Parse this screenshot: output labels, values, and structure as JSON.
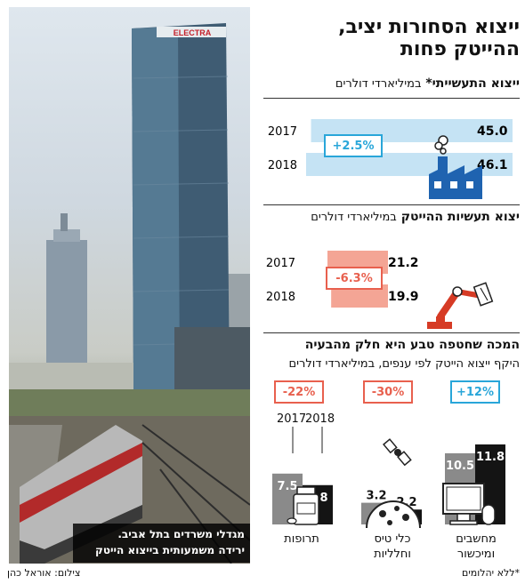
{
  "header": {
    "title_line1": "ייצוא הסחורות יציב,",
    "title_line2": "ההייטק פחות"
  },
  "photo": {
    "caption_line1": "מגדלי משרדים בתל אביב.",
    "caption_line2": "ירידה משמעותית בייצוא הייטק",
    "credit": "צילום: אוראל כהן"
  },
  "footnote": "*ללא יהלומים",
  "sections": {
    "industrial": {
      "title": "ייצוא התעשייתי*",
      "unit": "במיליארדי דולרים"
    },
    "hitech": {
      "title": "יצוא תעשיות ההייטק",
      "unit": "במיליארדי דולרים"
    },
    "branches": {
      "title": "המכה שחטפה טבע היא חלק מהבעיה",
      "subtitle": "היקף ייצוא הייטק לפי ענפים, במיליארדי דולרים"
    }
  },
  "chart_data": [
    {
      "type": "bar",
      "orientation": "horizontal",
      "title": "ייצוא התעשייתי*",
      "ylabel": "במיליארדי דולרים",
      "categories": [
        "2017",
        "2018"
      ],
      "values": [
        45.0,
        46.1
      ],
      "labels": [
        "45.0",
        "46.1"
      ],
      "change": "+2.5%",
      "color": "#c5e3f4"
    },
    {
      "type": "bar",
      "orientation": "horizontal",
      "title": "יצוא תעשיות ההייטק",
      "ylabel": "במיליארדי דולרים",
      "categories": [
        "2017",
        "2018"
      ],
      "values": [
        21.2,
        19.9
      ],
      "labels": [
        "21.2",
        "19.9"
      ],
      "change": "-6.3%",
      "color": "#f4a595"
    },
    {
      "type": "bar",
      "title": "המכה שחטפה טבע היא חלק מהבעיה",
      "subtitle": "היקף ייצוא הייטק לפי ענפים, במיליארדי דולרים",
      "years": [
        "2017",
        "2018"
      ],
      "groups": [
        {
          "label_line1": "מחשבים",
          "label_line2": "ומיכשור",
          "change": "+12%",
          "direction": "up",
          "values": [
            10.5,
            11.8
          ],
          "labels": [
            "10.5",
            "11.8"
          ]
        },
        {
          "label_line1": "כלי טיס",
          "label_line2": "וחלליות",
          "change": "-30%",
          "direction": "down",
          "values": [
            3.2,
            2.2
          ],
          "labels": [
            "3.2",
            "2.2"
          ]
        },
        {
          "label_line1": "תרופות",
          "label_line2": "",
          "change": "-22%",
          "direction": "down",
          "values": [
            7.5,
            5.8
          ],
          "labels": [
            "7.5",
            "5.8"
          ]
        }
      ],
      "colors": {
        "y2017": "#8a8a8a",
        "y2018": "#141414"
      }
    }
  ]
}
